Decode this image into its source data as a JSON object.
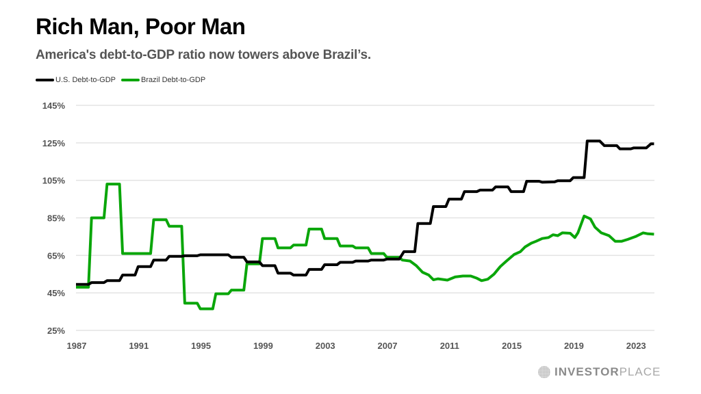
{
  "header": {
    "title": "Rich Man, Poor Man",
    "subtitle": "America's debt-to-GDP ratio now towers above Brazil’s."
  },
  "branding": {
    "logo_icon": "globe-grid-icon",
    "logo_bold": "INVESTOR",
    "logo_light": "PLACE"
  },
  "chart_data": {
    "type": "line",
    "title": "Rich Man, Poor Man",
    "subtitle": "America's debt-to-GDP ratio now towers above Brazil’s.",
    "xlabel": "",
    "ylabel": "",
    "xlim": [
      1987,
      2024.2
    ],
    "ylim": [
      25,
      145
    ],
    "grid": true,
    "legend_position": "top-left",
    "x_ticks": [
      1987,
      1991,
      1995,
      1999,
      2003,
      2007,
      2011,
      2015,
      2019,
      2023
    ],
    "x_tick_labels": [
      "1987",
      "1991",
      "1995",
      "1999",
      "2003",
      "2007",
      "2011",
      "2015",
      "2019",
      "2023"
    ],
    "y_ticks": [
      25,
      45,
      65,
      85,
      105,
      125,
      145
    ],
    "y_tick_labels": [
      "25%",
      "45%",
      "65%",
      "85%",
      "105%",
      "125%",
      "145%"
    ],
    "series": [
      {
        "name": "U.S. Debt-to-GDP",
        "color": "#000000",
        "points": [
          [
            1987.0,
            49.5
          ],
          [
            1987.8,
            49.5
          ],
          [
            1988.0,
            50.5
          ],
          [
            1988.8,
            50.5
          ],
          [
            1989.0,
            51.5
          ],
          [
            1989.8,
            51.5
          ],
          [
            1990.0,
            54.5
          ],
          [
            1990.8,
            54.5
          ],
          [
            1991.0,
            59.0
          ],
          [
            1991.8,
            59.0
          ],
          [
            1992.0,
            62.5
          ],
          [
            1992.8,
            62.5
          ],
          [
            1993.0,
            64.5
          ],
          [
            1993.8,
            64.5
          ],
          [
            1994.0,
            64.8
          ],
          [
            1994.8,
            64.8
          ],
          [
            1995.0,
            65.3
          ],
          [
            1996.8,
            65.3
          ],
          [
            1997.0,
            64.0
          ],
          [
            1997.8,
            64.0
          ],
          [
            1998.0,
            61.5
          ],
          [
            1998.8,
            61.5
          ],
          [
            1999.0,
            59.5
          ],
          [
            1999.8,
            59.5
          ],
          [
            2000.0,
            55.5
          ],
          [
            2000.8,
            55.5
          ],
          [
            2001.0,
            54.5
          ],
          [
            2001.8,
            54.5
          ],
          [
            2002.0,
            57.5
          ],
          [
            2002.8,
            57.5
          ],
          [
            2003.0,
            60.0
          ],
          [
            2003.8,
            60.0
          ],
          [
            2004.0,
            61.3
          ],
          [
            2004.8,
            61.3
          ],
          [
            2005.0,
            62.0
          ],
          [
            2005.8,
            62.0
          ],
          [
            2006.0,
            62.5
          ],
          [
            2006.8,
            62.5
          ],
          [
            2007.0,
            63.0
          ],
          [
            2007.8,
            63.0
          ],
          [
            2008.1,
            67.0
          ],
          [
            2008.8,
            67.0
          ],
          [
            2009.0,
            82.0
          ],
          [
            2009.8,
            82.0
          ],
          [
            2010.0,
            91.0
          ],
          [
            2010.8,
            91.0
          ],
          [
            2011.0,
            95.0
          ],
          [
            2011.8,
            95.0
          ],
          [
            2012.0,
            99.0
          ],
          [
            2012.8,
            99.0
          ],
          [
            2013.0,
            99.8
          ],
          [
            2013.8,
            99.8
          ],
          [
            2014.0,
            101.5
          ],
          [
            2014.8,
            101.5
          ],
          [
            2015.0,
            99.0
          ],
          [
            2015.8,
            99.0
          ],
          [
            2016.0,
            104.5
          ],
          [
            2016.8,
            104.5
          ],
          [
            2017.0,
            104.0
          ],
          [
            2017.8,
            104.2
          ],
          [
            2018.0,
            104.8
          ],
          [
            2018.8,
            104.8
          ],
          [
            2019.0,
            106.5
          ],
          [
            2019.7,
            106.5
          ],
          [
            2019.9,
            126.0
          ],
          [
            2020.7,
            126.0
          ],
          [
            2021.0,
            123.5
          ],
          [
            2021.8,
            123.5
          ],
          [
            2022.0,
            121.8
          ],
          [
            2022.7,
            121.8
          ],
          [
            2022.9,
            122.3
          ],
          [
            2023.7,
            122.3
          ],
          [
            2024.0,
            124.5
          ],
          [
            2024.2,
            124.5
          ]
        ]
      },
      {
        "name": "Brazil Debt-to-GDP",
        "color": "#0aa60a",
        "points": [
          [
            1987.0,
            48.0
          ],
          [
            1987.8,
            48.0
          ],
          [
            1988.0,
            85.0
          ],
          [
            1988.8,
            85.0
          ],
          [
            1989.0,
            103.0
          ],
          [
            1989.8,
            103.0
          ],
          [
            1990.0,
            66.0
          ],
          [
            1991.8,
            66.0
          ],
          [
            1992.0,
            84.0
          ],
          [
            1992.8,
            84.0
          ],
          [
            1993.0,
            80.5
          ],
          [
            1993.8,
            80.5
          ],
          [
            1994.0,
            39.5
          ],
          [
            1994.8,
            39.5
          ],
          [
            1995.0,
            36.5
          ],
          [
            1995.8,
            36.5
          ],
          [
            1996.0,
            44.5
          ],
          [
            1996.8,
            44.5
          ],
          [
            1997.0,
            46.5
          ],
          [
            1997.8,
            46.5
          ],
          [
            1998.0,
            60.5
          ],
          [
            1998.8,
            60.5
          ],
          [
            1999.0,
            74.0
          ],
          [
            1999.8,
            74.0
          ],
          [
            2000.0,
            69.0
          ],
          [
            2000.8,
            69.0
          ],
          [
            2001.0,
            70.5
          ],
          [
            2001.8,
            70.5
          ],
          [
            2002.0,
            79.0
          ],
          [
            2002.8,
            79.0
          ],
          [
            2003.0,
            74.0
          ],
          [
            2003.8,
            74.0
          ],
          [
            2004.0,
            70.0
          ],
          [
            2004.8,
            70.0
          ],
          [
            2005.0,
            69.0
          ],
          [
            2005.8,
            69.0
          ],
          [
            2006.0,
            66.0
          ],
          [
            2006.8,
            66.0
          ],
          [
            2007.0,
            64.0
          ],
          [
            2007.8,
            64.0
          ],
          [
            2008.0,
            62.5
          ],
          [
            2008.5,
            62.0
          ],
          [
            2008.9,
            59.5
          ],
          [
            2009.3,
            56.0
          ],
          [
            2009.7,
            54.5
          ],
          [
            2010.0,
            52.0
          ],
          [
            2010.3,
            52.5
          ],
          [
            2010.9,
            51.8
          ],
          [
            2011.4,
            53.5
          ],
          [
            2011.9,
            54.0
          ],
          [
            2012.4,
            54.0
          ],
          [
            2012.8,
            52.8
          ],
          [
            2013.1,
            51.5
          ],
          [
            2013.5,
            52.3
          ],
          [
            2013.9,
            55.0
          ],
          [
            2014.3,
            59.0
          ],
          [
            2014.7,
            62.0
          ],
          [
            2015.2,
            65.5
          ],
          [
            2015.6,
            67.0
          ],
          [
            2015.9,
            69.5
          ],
          [
            2016.3,
            71.5
          ],
          [
            2016.6,
            72.5
          ],
          [
            2017.0,
            74.0
          ],
          [
            2017.4,
            74.5
          ],
          [
            2017.7,
            76.0
          ],
          [
            2018.0,
            75.5
          ],
          [
            2018.3,
            77.0
          ],
          [
            2018.8,
            76.8
          ],
          [
            2019.1,
            74.5
          ],
          [
            2019.3,
            77.0
          ],
          [
            2019.7,
            86.0
          ],
          [
            2020.1,
            84.5
          ],
          [
            2020.4,
            80.0
          ],
          [
            2020.8,
            77.0
          ],
          [
            2021.3,
            75.5
          ],
          [
            2021.7,
            72.5
          ],
          [
            2022.1,
            72.5
          ],
          [
            2022.5,
            73.5
          ],
          [
            2023.0,
            75.0
          ],
          [
            2023.5,
            77.0
          ],
          [
            2023.8,
            76.5
          ],
          [
            2024.2,
            76.3
          ]
        ]
      }
    ]
  }
}
